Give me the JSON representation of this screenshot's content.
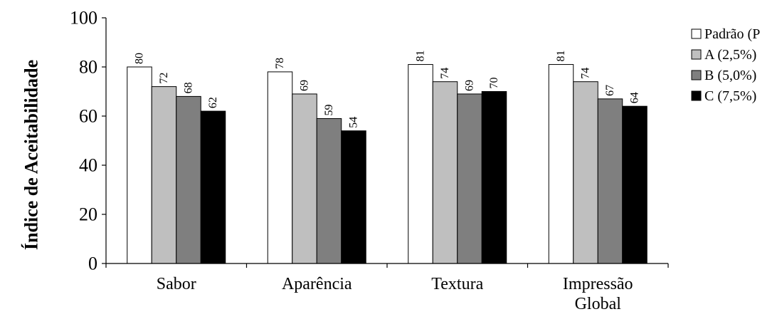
{
  "chart_data": {
    "type": "bar",
    "title": "",
    "xlabel": "",
    "ylabel": "Índice  de Aceitabilidade",
    "ylim": [
      0,
      100
    ],
    "yticks": [
      0,
      20,
      40,
      60,
      80,
      100
    ],
    "grid": false,
    "legend_position": "right",
    "categories": [
      "Sabor",
      "Aparência",
      "Textura",
      "Impressão Global"
    ],
    "category_label_lines": [
      [
        "Sabor"
      ],
      [
        "Aparência"
      ],
      [
        "Textura"
      ],
      [
        "Impressão",
        "Global"
      ]
    ],
    "series": [
      {
        "name": "Padrão (P",
        "color": "#ffffff",
        "values": [
          80,
          78,
          81,
          81
        ]
      },
      {
        "name": "A (2,5%)",
        "color": "#bfbfbf",
        "values": [
          72,
          69,
          74,
          74
        ]
      },
      {
        "name": "B (5,0%)",
        "color": "#7f7f7f",
        "values": [
          68,
          59,
          69,
          67
        ]
      },
      {
        "name": "C (7,5%)",
        "color": "#000000",
        "values": [
          62,
          54,
          70,
          64
        ]
      }
    ],
    "data_labels": true,
    "bar_stroke_color": "#000000"
  }
}
